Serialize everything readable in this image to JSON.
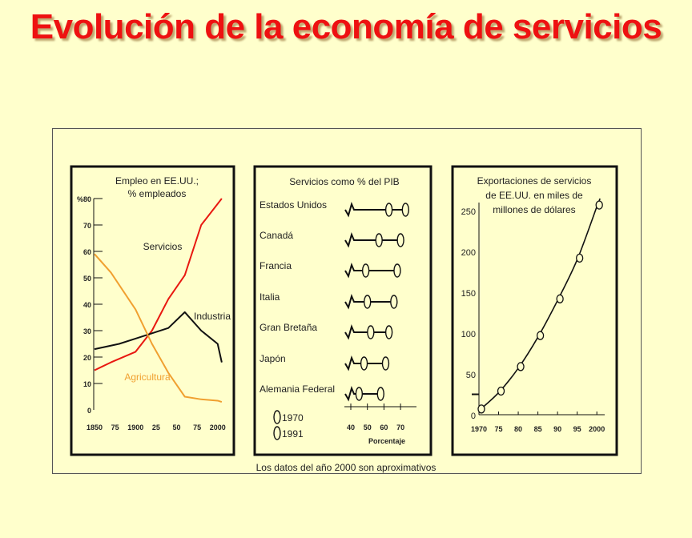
{
  "title": "Evolución de la economía de servicios",
  "footnote": "Los datos del año 2000 son aproximativos",
  "colors": {
    "background": "#ffffcc",
    "title": "#ee1111",
    "servicios": "#e81810",
    "industria": "#111111",
    "agricultura": "#f0a030"
  },
  "chart_data": [
    {
      "type": "line",
      "title": "Empleo en EE.UU.; % empleados",
      "ylabel": "%",
      "ylim": [
        0,
        80
      ],
      "yticks": [
        0,
        10,
        20,
        30,
        40,
        50,
        60,
        70,
        80
      ],
      "xlim": [
        1850,
        2010
      ],
      "xticks": [
        1850,
        1875,
        1900,
        1925,
        1950,
        1975,
        2000
      ],
      "xtick_labels": [
        "1850",
        "75",
        "1900",
        "25",
        "50",
        "75",
        "2000"
      ],
      "grid": false,
      "series": [
        {
          "name": "Servicios",
          "x": [
            1850,
            1870,
            1900,
            1920,
            1940,
            1960,
            1980,
            2000,
            2005
          ],
          "y": [
            15,
            18,
            22,
            30,
            42,
            51,
            70,
            78,
            80
          ]
        },
        {
          "name": "Industria",
          "x": [
            1850,
            1880,
            1900,
            1920,
            1940,
            1960,
            1980,
            2000,
            2005
          ],
          "y": [
            23,
            25,
            27,
            29,
            31,
            37,
            30,
            25,
            18
          ]
        },
        {
          "name": "Agricultura",
          "x": [
            1850,
            1870,
            1900,
            1920,
            1940,
            1960,
            1980,
            2000,
            2005
          ],
          "y": [
            59,
            52,
            38,
            25,
            14,
            5,
            4,
            3.5,
            3
          ]
        }
      ]
    },
    {
      "type": "dot-plot",
      "title": "Servicios como %  del PIB",
      "xlabel": "Porcentaje",
      "xlim": [
        40,
        75
      ],
      "xticks": [
        40,
        50,
        60,
        70
      ],
      "categories": [
        "Estados Unidos",
        "Canadá",
        "Francia",
        "Italia",
        "Gran Bretaña",
        "Japón",
        "Alemania Federal"
      ],
      "series": [
        {
          "name": "1970",
          "values": [
            63,
            57,
            49,
            50,
            52,
            48,
            45
          ]
        },
        {
          "name": "1991",
          "values": [
            73,
            70,
            68,
            66,
            63,
            61,
            58
          ]
        }
      ]
    },
    {
      "type": "scatter",
      "title": "Exportaciones de servicios de EE.UU. en miles de millones de dólares",
      "ylim": [
        0,
        260
      ],
      "yticks": [
        0,
        50,
        100,
        150,
        200,
        250
      ],
      "xlim": [
        1970,
        2002
      ],
      "xticks": [
        1970,
        1975,
        1980,
        1985,
        1990,
        1995,
        2000
      ],
      "xtick_labels": [
        "1970",
        "75",
        "80",
        "85",
        "90",
        "95",
        "2000"
      ],
      "grid": false,
      "x": [
        1970,
        1975,
        1980,
        1985,
        1990,
        1995,
        2000
      ],
      "y": [
        5,
        27,
        57,
        95,
        140,
        190,
        255
      ]
    }
  ]
}
